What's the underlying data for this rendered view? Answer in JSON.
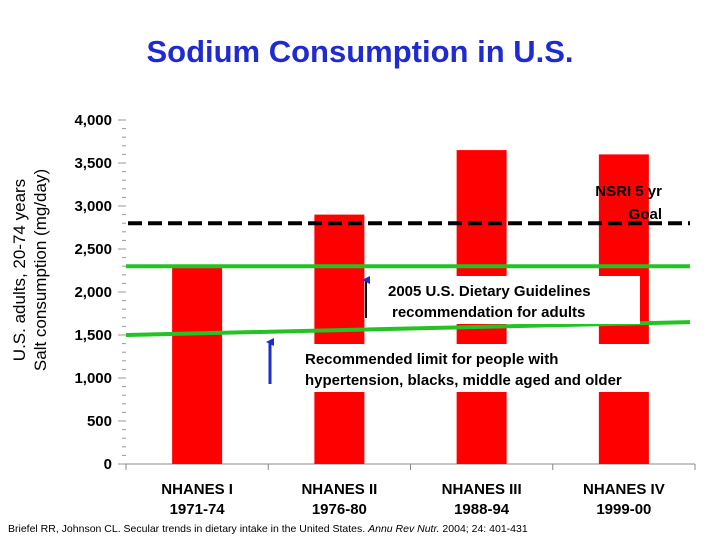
{
  "title": "Sodium Consumption in U.S.",
  "chart_data": {
    "type": "bar",
    "title": "Sodium Consumption in U.S.",
    "ylabel_lines": [
      "U.S. adults, 20-74 years",
      "Salt consumption (mg/day)"
    ],
    "ylim": [
      0,
      4000
    ],
    "yticks": [
      0,
      500,
      1000,
      1500,
      2000,
      2500,
      3000,
      3500,
      4000
    ],
    "ytick_labels": [
      "0",
      "500",
      "1,000",
      "1,500",
      "2,000",
      "2,500",
      "3,000",
      "3,500",
      "4,000"
    ],
    "categories": [
      {
        "name": "NHANES I",
        "years": "1971-74"
      },
      {
        "name": "NHANES II",
        "years": "1976-80"
      },
      {
        "name": "NHANES III",
        "years": "1988-94"
      },
      {
        "name": "NHANES IV",
        "years": "1999-00"
      }
    ],
    "values": [
      2300,
      2900,
      3650,
      3600
    ],
    "bar_color": "#ff0000",
    "reference_lines": [
      {
        "name": "NSRI 5 yr Goal",
        "value": 2800,
        "style": "dashed",
        "color": "#000000",
        "label_lines": [
          "NSRI 5 yr",
          "Goal"
        ]
      },
      {
        "name": "2005 U.S. Dietary Guidelines recommendation for adults",
        "value": 2300,
        "style": "solid",
        "color": "#22c322",
        "label_lines": [
          "2005 U.S. Dietary Guidelines",
          "recommendation for adults"
        ]
      },
      {
        "name": "Recommended limit for people with hypertension, blacks, middle aged and older",
        "value": 1500,
        "value_end": 1650,
        "style": "solid",
        "color": "#22c322",
        "label_lines": [
          "Recommended limit for people with",
          "hypertension, blacks, middle aged and older"
        ]
      }
    ],
    "arrow_color": "#1f2bd1"
  },
  "citation": {
    "prefix": "Briefel RR, Johnson CL. Secular trends in dietary intake in the United States. ",
    "journal": "Annu Rev Nutr.",
    "suffix": " 2004; 24: 401-431"
  }
}
